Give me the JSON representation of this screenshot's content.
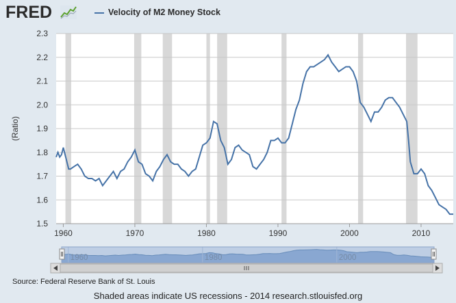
{
  "header": {
    "logo": "FRED",
    "logo_icon": "line-graph-icon"
  },
  "chart_data": {
    "type": "line",
    "title": "",
    "xlabel": "",
    "ylabel": "(Ratio)",
    "xlim": [
      1959,
      2014.5
    ],
    "ylim": [
      1.5,
      2.3
    ],
    "y_ticks": [
      "1.5",
      "1.6",
      "1.7",
      "1.8",
      "1.9",
      "2.0",
      "2.1",
      "2.2",
      "2.3"
    ],
    "x_ticks": [
      "1960",
      "1970",
      "1980",
      "1990",
      "2000",
      "2010"
    ],
    "grid": "horizontal",
    "legend_position": "top",
    "series": [
      {
        "name": "Velocity of M2 Money Stock",
        "color": "#4572a7",
        "x": [
          1959.0,
          1959.25,
          1959.5,
          1959.75,
          1960.0,
          1960.25,
          1960.5,
          1960.75,
          1961.0,
          1961.5,
          1962.0,
          1962.5,
          1963.0,
          1963.5,
          1964.0,
          1964.5,
          1965.0,
          1965.5,
          1966.0,
          1966.5,
          1967.0,
          1967.5,
          1968.0,
          1968.5,
          1969.0,
          1969.5,
          1970.0,
          1970.5,
          1971.0,
          1971.5,
          1972.0,
          1972.5,
          1973.0,
          1973.5,
          1974.0,
          1974.5,
          1975.0,
          1975.5,
          1976.0,
          1976.5,
          1977.0,
          1977.5,
          1978.0,
          1978.5,
          1979.0,
          1979.5,
          1980.0,
          1980.5,
          1981.0,
          1981.5,
          1982.0,
          1982.5,
          1983.0,
          1983.5,
          1984.0,
          1984.5,
          1985.0,
          1985.5,
          1986.0,
          1986.5,
          1987.0,
          1987.5,
          1988.0,
          1988.5,
          1989.0,
          1989.5,
          1990.0,
          1990.5,
          1991.0,
          1991.5,
          1992.0,
          1992.5,
          1993.0,
          1993.5,
          1994.0,
          1994.5,
          1995.0,
          1995.5,
          1996.0,
          1996.5,
          1997.0,
          1997.5,
          1998.0,
          1998.5,
          1999.0,
          1999.5,
          2000.0,
          2000.5,
          2001.0,
          2001.5,
          2002.0,
          2002.5,
          2003.0,
          2003.5,
          2004.0,
          2004.5,
          2005.0,
          2005.5,
          2006.0,
          2006.5,
          2007.0,
          2007.5,
          2008.0,
          2008.25,
          2008.5,
          2009.0,
          2009.5,
          2010.0,
          2010.5,
          2011.0,
          2011.5,
          2012.0,
          2012.5,
          2013.0,
          2013.5,
          2014.0,
          2014.5
        ],
        "y": [
          1.78,
          1.8,
          1.78,
          1.79,
          1.82,
          1.79,
          1.76,
          1.73,
          1.73,
          1.74,
          1.75,
          1.73,
          1.7,
          1.69,
          1.69,
          1.68,
          1.69,
          1.66,
          1.68,
          1.7,
          1.72,
          1.69,
          1.72,
          1.73,
          1.76,
          1.78,
          1.81,
          1.76,
          1.75,
          1.71,
          1.7,
          1.68,
          1.72,
          1.74,
          1.77,
          1.79,
          1.76,
          1.75,
          1.75,
          1.73,
          1.72,
          1.7,
          1.72,
          1.73,
          1.78,
          1.83,
          1.84,
          1.86,
          1.93,
          1.92,
          1.85,
          1.82,
          1.75,
          1.77,
          1.82,
          1.83,
          1.81,
          1.8,
          1.79,
          1.74,
          1.73,
          1.75,
          1.77,
          1.8,
          1.85,
          1.85,
          1.86,
          1.84,
          1.84,
          1.86,
          1.92,
          1.98,
          2.02,
          2.09,
          2.14,
          2.16,
          2.16,
          2.17,
          2.18,
          2.19,
          2.21,
          2.18,
          2.16,
          2.14,
          2.15,
          2.16,
          2.16,
          2.14,
          2.1,
          2.01,
          1.99,
          1.96,
          1.93,
          1.97,
          1.97,
          1.99,
          2.02,
          2.03,
          2.03,
          2.01,
          1.99,
          1.96,
          1.93,
          1.85,
          1.76,
          1.71,
          1.71,
          1.73,
          1.71,
          1.66,
          1.64,
          1.61,
          1.58,
          1.57,
          1.56,
          1.54,
          1.54
        ]
      }
    ],
    "recession_bands": [
      [
        1960.3,
        1961.1
      ],
      [
        1969.9,
        1970.9
      ],
      [
        1973.9,
        1975.2
      ],
      [
        1980.0,
        1980.5
      ],
      [
        1981.5,
        1982.9
      ],
      [
        1990.5,
        1991.2
      ],
      [
        2001.2,
        2001.9
      ],
      [
        2007.9,
        2009.5
      ]
    ],
    "navigator": {
      "ticks": [
        "1960",
        "1980",
        "2000"
      ],
      "scroll_left_icon": "chevron-left-icon",
      "scroll_right_icon": "chevron-right-icon",
      "scrollbar_grip_icon": "grip-lines-icon"
    }
  },
  "footer": {
    "source": "Source: Federal Reserve Bank of St. Louis",
    "note": "Shaded areas indicate US recessions - 2014 research.stlouisfed.org"
  }
}
